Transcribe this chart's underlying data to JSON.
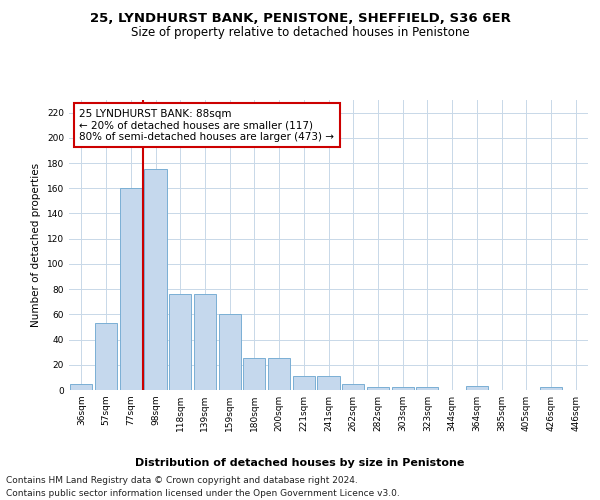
{
  "title": "25, LYNDHURST BANK, PENISTONE, SHEFFIELD, S36 6ER",
  "subtitle": "Size of property relative to detached houses in Penistone",
  "xlabel": "Distribution of detached houses by size in Penistone",
  "ylabel": "Number of detached properties",
  "categories": [
    "36sqm",
    "57sqm",
    "77sqm",
    "98sqm",
    "118sqm",
    "139sqm",
    "159sqm",
    "180sqm",
    "200sqm",
    "221sqm",
    "241sqm",
    "262sqm",
    "282sqm",
    "303sqm",
    "323sqm",
    "344sqm",
    "364sqm",
    "385sqm",
    "405sqm",
    "426sqm",
    "446sqm"
  ],
  "values": [
    5,
    53,
    160,
    175,
    76,
    76,
    60,
    25,
    25,
    11,
    11,
    5,
    2,
    2,
    2,
    0,
    3,
    0,
    0,
    2,
    0
  ],
  "bar_color": "#c5d8ed",
  "bar_edge_color": "#7aafd4",
  "property_line_x": 2.5,
  "property_line_color": "#cc0000",
  "annotation_text": "25 LYNDHURST BANK: 88sqm\n← 20% of detached houses are smaller (117)\n80% of semi-detached houses are larger (473) →",
  "annotation_box_color": "#ffffff",
  "annotation_box_edge_color": "#cc0000",
  "ylim": [
    0,
    230
  ],
  "yticks": [
    0,
    20,
    40,
    60,
    80,
    100,
    120,
    140,
    160,
    180,
    200,
    220
  ],
  "background_color": "#ffffff",
  "grid_color": "#c8d8e8",
  "footer_line1": "Contains HM Land Registry data © Crown copyright and database right 2024.",
  "footer_line2": "Contains public sector information licensed under the Open Government Licence v3.0.",
  "title_fontsize": 9.5,
  "subtitle_fontsize": 8.5,
  "xlabel_fontsize": 8,
  "ylabel_fontsize": 7.5,
  "tick_fontsize": 6.5,
  "annotation_fontsize": 7.5,
  "footer_fontsize": 6.5
}
